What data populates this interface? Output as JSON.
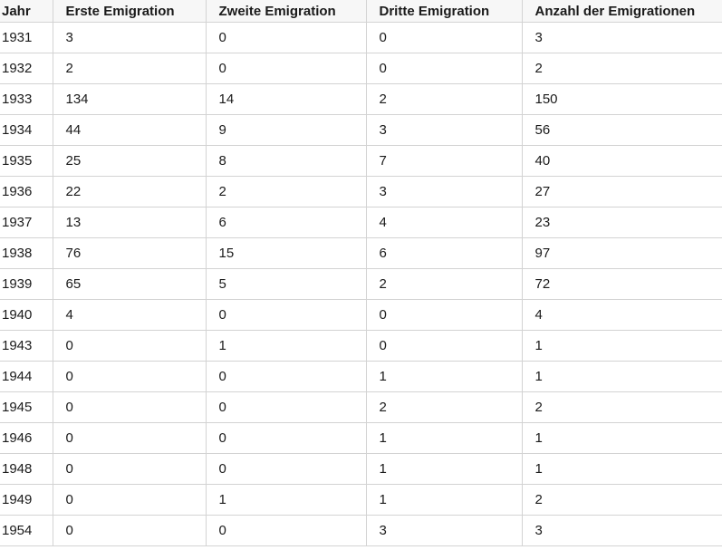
{
  "table": {
    "headers": [
      "Jahr",
      "Erste Emigration",
      "Zweite Emigration",
      "Dritte Emigration",
      "Anzahl der Emigrationen"
    ],
    "rows": [
      [
        "1931",
        "3",
        "0",
        "0",
        "3"
      ],
      [
        "1932",
        "2",
        "0",
        "0",
        "2"
      ],
      [
        "1933",
        "134",
        "14",
        "2",
        "150"
      ],
      [
        "1934",
        "44",
        "9",
        "3",
        "56"
      ],
      [
        "1935",
        "25",
        "8",
        "7",
        "40"
      ],
      [
        "1936",
        "22",
        "2",
        "3",
        "27"
      ],
      [
        "1937",
        "13",
        "6",
        "4",
        "23"
      ],
      [
        "1938",
        "76",
        "15",
        "6",
        "97"
      ],
      [
        "1939",
        "65",
        "5",
        "2",
        "72"
      ],
      [
        "1940",
        "4",
        "0",
        "0",
        "4"
      ],
      [
        "1943",
        "0",
        "1",
        "0",
        "1"
      ],
      [
        "1944",
        "0",
        "0",
        "1",
        "1"
      ],
      [
        "1945",
        "0",
        "0",
        "2",
        "2"
      ],
      [
        "1946",
        "0",
        "0",
        "1",
        "1"
      ],
      [
        "1948",
        "0",
        "0",
        "1",
        "1"
      ],
      [
        "1949",
        "0",
        "1",
        "1",
        "2"
      ],
      [
        "1954",
        "0",
        "0",
        "3",
        "3"
      ]
    ]
  }
}
